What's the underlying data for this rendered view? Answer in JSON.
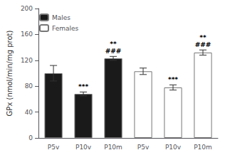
{
  "chart_data": {
    "type": "bar",
    "categories": [
      "P5v",
      "P10v",
      "P10m",
      "P5v",
      "P10v",
      "P10m"
    ],
    "series": [
      {
        "name": "Males",
        "color": "#1a1a1a",
        "edge_color": "#777777",
        "values": [
          100,
          68,
          123,
          null,
          null,
          null
        ],
        "errors": [
          12,
          3,
          3,
          null,
          null,
          null
        ]
      },
      {
        "name": "Females",
        "color": "#ffffff",
        "edge_color": "#777777",
        "values": [
          null,
          null,
          null,
          103,
          78,
          132
        ],
        "errors": [
          null,
          null,
          null,
          5,
          4,
          4
        ]
      }
    ],
    "annotations": [
      {
        "text": "***",
        "series": "Males",
        "index": 1
      },
      {
        "text": "###",
        "series": "Males",
        "index": 2
      },
      {
        "text": "**",
        "series": "Males",
        "index": 2
      },
      {
        "text": "***",
        "series": "Females",
        "index": 4
      },
      {
        "text": "###",
        "series": "Females",
        "index": 5
      },
      {
        "text": "**",
        "series": "Females",
        "index": 5
      }
    ],
    "ylabel": "GPx (nmol/min/mg prot)",
    "ylim": [
      0,
      200
    ],
    "yticks": [
      0,
      40,
      80,
      120,
      160,
      200
    ],
    "legend": "upper left",
    "grid": false
  }
}
